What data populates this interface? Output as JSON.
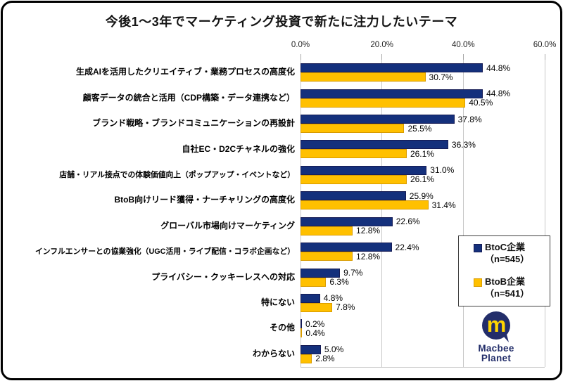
{
  "chart_data": {
    "type": "bar",
    "orientation": "horizontal",
    "title": "今後1〜3年でマーケティング投資で新たに注力したいテーマ",
    "categories": [
      "生成AIを活用したクリエイティブ・業務プロセスの高度化",
      "顧客データの統合と活用（CDP構築・データ連携など）",
      "ブランド戦略・ブランドコミュニケーションの再設計",
      "自社EC・D2Cチャネルの強化",
      "店舗・リアル接点での体験価値向上（ポップアップ・イベントなど）",
      "BtoB向けリード獲得・ナーチャリングの高度化",
      "グローバル市場向けマーケティング",
      "インフルエンサーとの協業強化（UGC活用・ライブ配信・コラボ企画など）",
      "プライバシー・クッキーレスへの対応",
      "特にない",
      "その他",
      "わからない"
    ],
    "series": [
      {
        "name": "BtoC企業",
        "n_label": "（n=545）",
        "color": "#14307C",
        "border_color": "#161C55",
        "values": [
          44.8,
          44.8,
          37.8,
          36.3,
          31.0,
          25.9,
          22.6,
          22.4,
          9.7,
          4.8,
          0.2,
          5.0
        ]
      },
      {
        "name": "BtoB企業",
        "n_label": "（n=541）",
        "color": "#FFC000",
        "border_color": "#D99C00",
        "values": [
          30.7,
          40.5,
          25.5,
          26.1,
          26.1,
          31.4,
          12.8,
          12.8,
          6.3,
          7.8,
          0.4,
          2.8
        ]
      }
    ],
    "xlim": [
      0,
      60
    ],
    "x_ticks": [
      {
        "value": 0,
        "label": "0.0%"
      },
      {
        "value": 20,
        "label": "20.0%"
      },
      {
        "value": 40,
        "label": "40.0%"
      },
      {
        "value": 60,
        "label": "60.0%"
      }
    ],
    "value_suffix": "%",
    "grid": true,
    "legend_position": "right"
  },
  "logo": {
    "mark_letter": "m",
    "line1": "Macbee",
    "line2": "Planet",
    "navy": "#232E6A",
    "yellow": "#FFD500"
  }
}
